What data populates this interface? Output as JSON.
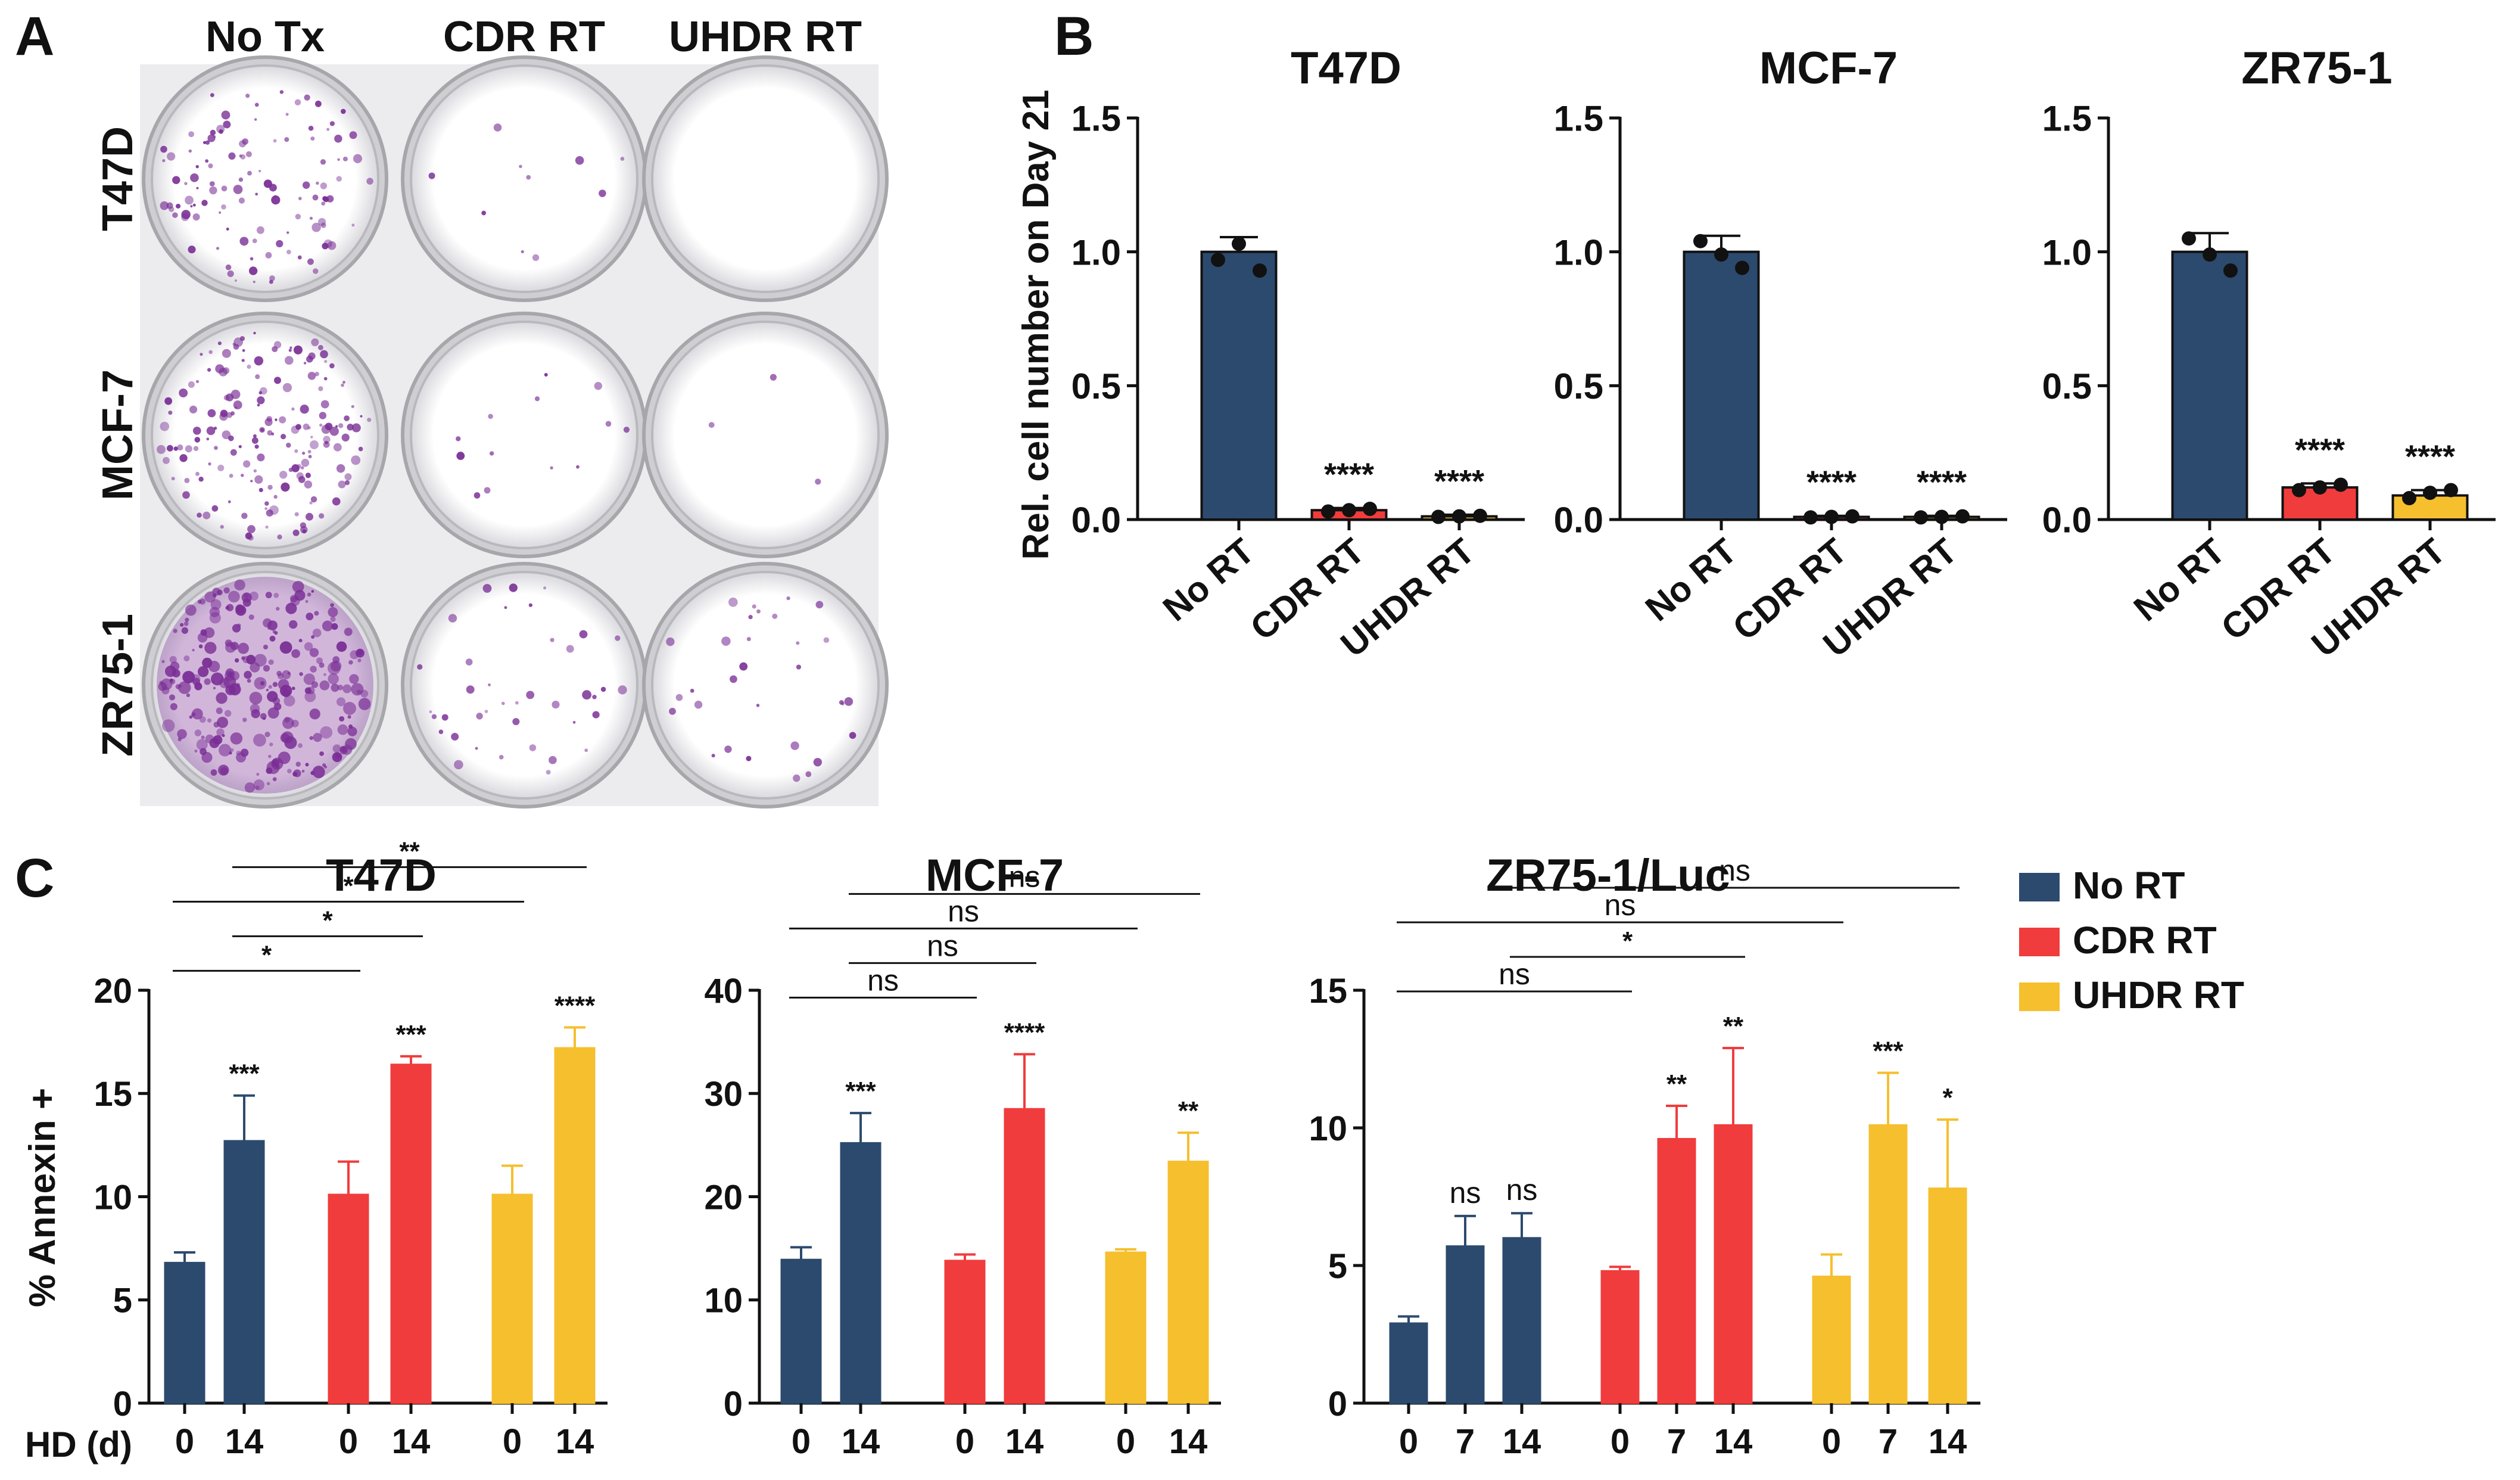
{
  "colors": {
    "no_rt": "#2c4a6e",
    "cdr_rt": "#f03c3c",
    "uhdr_rt": "#f5bf2e",
    "axis": "#111111",
    "stain": "#7a2f96"
  },
  "panel_labels": {
    "a": "A",
    "b": "B",
    "c": "C"
  },
  "panel_a": {
    "columns": [
      "No Tx",
      "CDR RT",
      "UHDR RT"
    ],
    "rows": [
      "T47D",
      "MCF-7",
      "ZR75-1"
    ],
    "colony_density": [
      [
        0.45,
        0.04,
        0.0
      ],
      [
        0.7,
        0.05,
        0.01
      ],
      [
        1.0,
        0.15,
        0.12
      ]
    ]
  },
  "chart_data": [
    {
      "type": "bar",
      "panel": "B",
      "title": "T47D",
      "ylabel": "Rel. cell number on Day 21",
      "categories": [
        "No RT",
        "CDR RT",
        "UHDR RT"
      ],
      "values": [
        1.0,
        0.035,
        0.012
      ],
      "errors": [
        0.055,
        0.008,
        0.006
      ],
      "points": [
        [
          0.97,
          1.03,
          0.93
        ],
        [
          0.03,
          0.035,
          0.04
        ],
        [
          0.01,
          0.012,
          0.014
        ]
      ],
      "bar_colors": [
        "#2c4a6e",
        "#f03c3c",
        "#f5bf2e"
      ],
      "significance": [
        "",
        "****",
        "****"
      ],
      "ylim": [
        0,
        1.5
      ],
      "yticks": [
        "0.0",
        "0.5",
        "1.0",
        "1.5"
      ]
    },
    {
      "type": "bar",
      "panel": "B",
      "title": "MCF-7",
      "categories": [
        "No RT",
        "CDR RT",
        "UHDR RT"
      ],
      "values": [
        1.0,
        0.01,
        0.01
      ],
      "errors": [
        0.06,
        0.004,
        0.004
      ],
      "points": [
        [
          1.04,
          0.99,
          0.94
        ],
        [
          0.008,
          0.01,
          0.012
        ],
        [
          0.008,
          0.01,
          0.012
        ]
      ],
      "bar_colors": [
        "#2c4a6e",
        "#f03c3c",
        "#f5bf2e"
      ],
      "significance": [
        "",
        "****",
        "****"
      ],
      "ylim": [
        0,
        1.5
      ],
      "yticks": [
        "0.0",
        "0.5",
        "1.0",
        "1.5"
      ]
    },
    {
      "type": "bar",
      "panel": "B",
      "title": "ZR75-1",
      "categories": [
        "No RT",
        "CDR RT",
        "UHDR RT"
      ],
      "values": [
        1.0,
        0.12,
        0.09
      ],
      "errors": [
        0.07,
        0.015,
        0.02
      ],
      "points": [
        [
          1.05,
          0.99,
          0.93
        ],
        [
          0.11,
          0.12,
          0.13
        ],
        [
          0.08,
          0.1,
          0.11
        ]
      ],
      "bar_colors": [
        "#2c4a6e",
        "#f03c3c",
        "#f5bf2e"
      ],
      "significance": [
        "",
        "****",
        "****"
      ],
      "ylim": [
        0,
        1.5
      ],
      "yticks": [
        "0.0",
        "0.5",
        "1.0",
        "1.5"
      ]
    },
    {
      "type": "bar",
      "panel": "C",
      "title": "T47D",
      "ylabel": "% Annexin +",
      "xlabel": "HD (d)",
      "groups": [
        "No RT",
        "CDR RT",
        "UHDR RT"
      ],
      "x": [
        "0",
        "14",
        "0",
        "14",
        "0",
        "14"
      ],
      "values": [
        6.8,
        12.7,
        10.1,
        16.4,
        10.1,
        17.2
      ],
      "errors": [
        0.5,
        2.2,
        1.6,
        0.4,
        1.4,
        1.0
      ],
      "bar_group": [
        0,
        0,
        1,
        1,
        2,
        2
      ],
      "significance": [
        "",
        "***",
        "",
        "***",
        "",
        "****"
      ],
      "comparisons": [
        {
          "from": 0,
          "to": 2,
          "label": "*"
        },
        {
          "from": 0,
          "to": 4,
          "label": "*"
        },
        {
          "from": 1,
          "to": 3,
          "label": "*"
        },
        {
          "from": 1,
          "to": 5,
          "label": "**"
        }
      ],
      "ylim": [
        0,
        20
      ],
      "yticks": [
        "0",
        "5",
        "10",
        "15",
        "20"
      ]
    },
    {
      "type": "bar",
      "panel": "C",
      "title": "MCF-7",
      "groups": [
        "No RT",
        "CDR RT",
        "UHDR RT"
      ],
      "x": [
        "0",
        "14",
        "0",
        "14",
        "0",
        "14"
      ],
      "values": [
        13.9,
        25.2,
        13.8,
        28.5,
        14.6,
        23.4
      ],
      "errors": [
        1.2,
        2.9,
        0.6,
        5.3,
        0.3,
        2.8
      ],
      "bar_group": [
        0,
        0,
        1,
        1,
        2,
        2
      ],
      "significance": [
        "",
        "***",
        "",
        "****",
        "",
        "**"
      ],
      "comparisons": [
        {
          "from": 0,
          "to": 2,
          "label": "ns"
        },
        {
          "from": 0,
          "to": 4,
          "label": "ns"
        },
        {
          "from": 1,
          "to": 3,
          "label": "ns"
        },
        {
          "from": 1,
          "to": 5,
          "label": "ns"
        }
      ],
      "ylim": [
        0,
        40
      ],
      "yticks": [
        "0",
        "10",
        "20",
        "30",
        "40"
      ]
    },
    {
      "type": "bar",
      "panel": "C",
      "title": "ZR75-1/Luc",
      "groups": [
        "No RT",
        "CDR RT",
        "UHDR RT"
      ],
      "x": [
        "0",
        "7",
        "14",
        "0",
        "7",
        "14",
        "0",
        "7",
        "14"
      ],
      "values": [
        2.9,
        5.7,
        6.0,
        4.8,
        9.6,
        10.1,
        4.6,
        10.1,
        7.8
      ],
      "errors": [
        0.25,
        1.1,
        0.9,
        0.15,
        1.2,
        2.8,
        0.8,
        1.9,
        2.5
      ],
      "bar_group": [
        0,
        0,
        0,
        1,
        1,
        1,
        2,
        2,
        2
      ],
      "significance": [
        "",
        "ns",
        "ns",
        "",
        "**",
        "**",
        "",
        "***",
        "*"
      ],
      "comparisons": [
        {
          "from": 0,
          "to": 3,
          "label": "ns"
        },
        {
          "from": 0,
          "to": 6,
          "label": "ns"
        },
        {
          "from": 2,
          "to": 5,
          "label": "*"
        },
        {
          "from": 2,
          "to": 8,
          "label": "ns"
        }
      ],
      "ylim": [
        0,
        15
      ],
      "yticks": [
        "0",
        "5",
        "10",
        "15"
      ]
    }
  ],
  "legend": {
    "placement": "right",
    "items": [
      {
        "label": "No RT",
        "color": "#2c4a6e"
      },
      {
        "label": "CDR RT",
        "color": "#f03c3c"
      },
      {
        "label": "UHDR RT",
        "color": "#f5bf2e"
      }
    ]
  }
}
